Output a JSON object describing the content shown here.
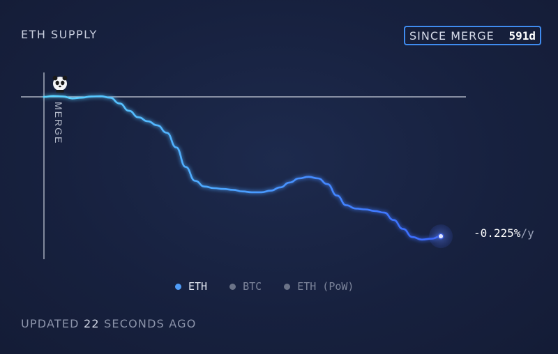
{
  "header": {
    "title": "ETH SUPPLY",
    "since_label": "SINCE MERGE",
    "since_days": "591d"
  },
  "annotations": {
    "merge_label": "MERGE",
    "rate_value": "-0.225%",
    "rate_unit": "/y"
  },
  "legend": [
    {
      "label": "ETH",
      "color": "#4f9cf7",
      "active": true
    },
    {
      "label": "BTC",
      "color": "#6b7388",
      "active": false
    },
    {
      "label": "ETH (PoW)",
      "color": "#6b7388",
      "active": false
    }
  ],
  "footer": {
    "prefix": "UPDATED",
    "value": "22",
    "suffix": "SECONDS AGO"
  },
  "colors": {
    "line_start": "#5cd6ff",
    "line_end": "#3a68ff",
    "accent": "#3f8cf0",
    "reference_line": "#c9cfdc"
  },
  "chart_data": {
    "type": "line",
    "series": [
      {
        "values": [
          0,
          0.001,
          0.0005,
          -0.002,
          -0.001,
          0.0005,
          0.0008,
          -0.001,
          -0.008,
          -0.017,
          -0.025,
          -0.03,
          -0.035,
          -0.044,
          -0.062,
          -0.086,
          -0.103,
          -0.11,
          -0.112,
          -0.113,
          -0.114,
          -0.116,
          -0.117,
          -0.117,
          -0.115,
          -0.111,
          -0.105,
          -0.1,
          -0.098,
          -0.1,
          -0.107,
          -0.121,
          -0.133,
          -0.137,
          -0.138,
          -0.14,
          -0.142,
          -0.151,
          -0.162,
          -0.172,
          -0.175,
          -0.174,
          -0.171
        ]
      }
    ],
    "reference_line_value": 0,
    "grid": false
  }
}
